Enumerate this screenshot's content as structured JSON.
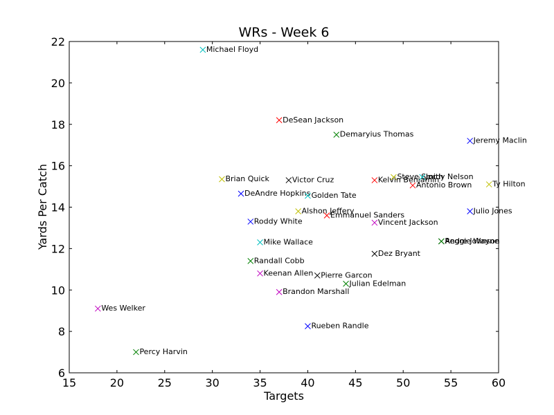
{
  "chart_data": {
    "type": "scatter",
    "title": "WRs - Week 6",
    "xlabel": "Targets",
    "ylabel": "Yards Per Catch",
    "xlim": [
      15,
      60
    ],
    "ylim": [
      6,
      22
    ],
    "xticks": [
      15,
      20,
      25,
      30,
      35,
      40,
      45,
      50,
      55,
      60
    ],
    "yticks": [
      6,
      8,
      10,
      12,
      14,
      16,
      18,
      20,
      22
    ],
    "grid": false,
    "marker": "x",
    "points": [
      {
        "label": "Michael Floyd",
        "x": 29,
        "y": 21.6,
        "color": "#00bfbf"
      },
      {
        "label": "DeSean Jackson",
        "x": 37,
        "y": 18.2,
        "color": "#ff0000"
      },
      {
        "label": "Demaryius Thomas",
        "x": 43,
        "y": 17.5,
        "color": "#008000"
      },
      {
        "label": "Jeremy Maclin",
        "x": 57,
        "y": 17.2,
        "color": "#0000ff"
      },
      {
        "label": "Brian Quick",
        "x": 31,
        "y": 15.35,
        "color": "#bfbf00"
      },
      {
        "label": "Victor Cruz",
        "x": 38,
        "y": 15.3,
        "color": "#000000"
      },
      {
        "label": "Steve Smith",
        "x": 49,
        "y": 15.45,
        "color": "#bfbf00"
      },
      {
        "label": "Jordy Nelson",
        "x": 52,
        "y": 15.45,
        "color": "#00bfbf"
      },
      {
        "label": "Kelvin Benjamin",
        "x": 47,
        "y": 15.3,
        "color": "#ff0000"
      },
      {
        "label": "Antonio Brown",
        "x": 51,
        "y": 15.05,
        "color": "#ff0000"
      },
      {
        "label": "Ty Hilton",
        "x": 59,
        "y": 15.1,
        "color": "#bfbf00"
      },
      {
        "label": "DeAndre Hopkins",
        "x": 33,
        "y": 14.65,
        "color": "#0000ff"
      },
      {
        "label": "Golden Tate",
        "x": 40,
        "y": 14.55,
        "color": "#00bfbf"
      },
      {
        "label": "Alshon Jeffery",
        "x": 39,
        "y": 13.8,
        "color": "#bfbf00"
      },
      {
        "label": "Julio Jones",
        "x": 57,
        "y": 13.8,
        "color": "#0000ff"
      },
      {
        "label": "Emmanuel Sanders",
        "x": 42,
        "y": 13.6,
        "color": "#ff0000"
      },
      {
        "label": "Roddy White",
        "x": 34,
        "y": 13.3,
        "color": "#0000ff"
      },
      {
        "label": "Vincent Jackson",
        "x": 47,
        "y": 13.25,
        "color": "#bf00bf"
      },
      {
        "label": "Mike Wallace",
        "x": 35,
        "y": 12.3,
        "color": "#00bfbf"
      },
      {
        "label": "Reggie Wayne",
        "x": 54,
        "y": 12.35,
        "color": "#000000"
      },
      {
        "label": "Andre Johnson",
        "x": 54,
        "y": 12.35,
        "color": "#008000"
      },
      {
        "label": "Dez Bryant",
        "x": 47,
        "y": 11.75,
        "color": "#000000"
      },
      {
        "label": "Randall Cobb",
        "x": 34,
        "y": 11.4,
        "color": "#008000"
      },
      {
        "label": "Keenan Allen",
        "x": 35,
        "y": 10.8,
        "color": "#bf00bf"
      },
      {
        "label": "Pierre Garcon",
        "x": 41,
        "y": 10.7,
        "color": "#000000"
      },
      {
        "label": "Julian Edelman",
        "x": 44,
        "y": 10.3,
        "color": "#008000"
      },
      {
        "label": "Brandon Marshall",
        "x": 37,
        "y": 9.9,
        "color": "#bf00bf"
      },
      {
        "label": "Wes Welker",
        "x": 18,
        "y": 9.1,
        "color": "#bf00bf"
      },
      {
        "label": "Rueben Randle",
        "x": 40,
        "y": 8.25,
        "color": "#0000ff"
      },
      {
        "label": "Percy Harvin",
        "x": 22,
        "y": 7.0,
        "color": "#008000"
      }
    ]
  }
}
